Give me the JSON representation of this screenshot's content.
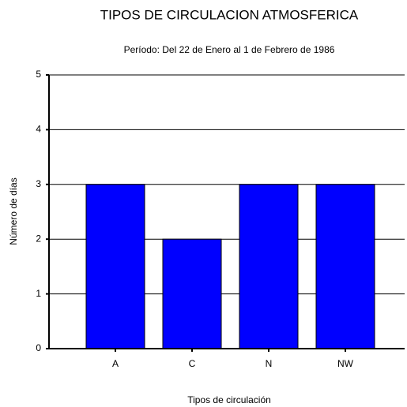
{
  "chart_data": {
    "type": "bar",
    "title": "TIPOS DE CIRCULACION ATMOSFERICA",
    "subtitle": "Período: Del 22 de Enero al 1 de Febrero de 1986",
    "x_label": "Tipos de circulación",
    "y_label": "Número de días",
    "categories": [
      "A",
      "C",
      "N",
      "NW"
    ],
    "values": [
      3,
      2,
      3,
      3
    ],
    "color": "#0000ff",
    "ylim": [
      0,
      5
    ],
    "yticks": [
      0,
      1,
      2,
      3,
      4,
      5
    ],
    "grid": true
  }
}
